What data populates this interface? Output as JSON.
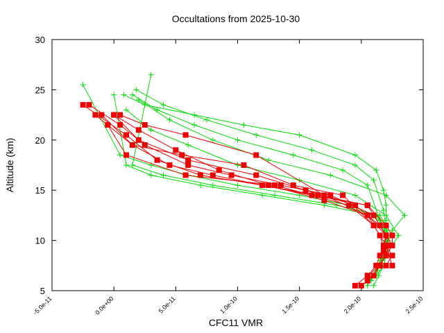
{
  "chart_data": {
    "type": "line",
    "title": "Occultations from 2025-10-30",
    "xlabel": "CFC11 VMR",
    "ylabel": "Altitude (km)",
    "xlim": [
      -5e-11,
      2.5e-10
    ],
    "ylim": [
      5,
      30
    ],
    "xticks": [
      -5e-11,
      0,
      5e-11,
      1e-10,
      1.5e-10,
      2e-10,
      2.5e-10
    ],
    "xtick_labels": [
      "-5.0e-11",
      "0.0e+00",
      "5.0e-11",
      "1.0e-10",
      "1.5e-10",
      "2.0e-10",
      "2.5e-10"
    ],
    "yticks": [
      5,
      10,
      15,
      20,
      25,
      30
    ],
    "ytick_labels": [
      "5",
      "10",
      "15",
      "20",
      "25",
      "30"
    ],
    "grid": false,
    "legend": "none",
    "series": [
      {
        "color": "#00dd00",
        "marker": "plus",
        "profiles": [
          {
            "x": [
              2.05e-10,
              2.1e-10,
              2.15e-10,
              2.18e-10,
              2.2e-10,
              2.2e-10,
              2.18e-10,
              2.12e-10,
              1.9e-10,
              1.5e-10,
              1e-10,
              6e-11,
              3e-11,
              5e-12,
              -2.5e-11
            ],
            "y": [
              5.5,
              6.5,
              7.5,
              8.5,
              9.5,
              10.5,
              11.5,
              12.5,
              13.5,
              14.5,
              15.5,
              16.5,
              17.5,
              18.5,
              25.5
            ]
          },
          {
            "x": [
              2.1e-10,
              2.15e-10,
              2.18e-10,
              2.2e-10,
              2.22e-10,
              2.18e-10,
              2.1e-10,
              1.7e-10,
              1.2e-10,
              7e-11,
              3e-11,
              1e-11,
              0.0
            ],
            "y": [
              6.5,
              7.5,
              8.5,
              9.5,
              10.5,
              11.5,
              12.5,
              13.5,
              14.5,
              15.5,
              16.5,
              17.5,
              24.5
            ]
          },
          {
            "x": [
              2.15e-10,
              2.18e-10,
              2.2e-10,
              2.22e-10,
              2.2e-10,
              2.15e-10,
              1.8e-10,
              1.3e-10,
              8e-11,
              4e-11,
              1.5e-11,
              3e-11
            ],
            "y": [
              7.5,
              8.5,
              9.5,
              10.5,
              11.5,
              12.5,
              13.5,
              14.5,
              15.5,
              16.5,
              17.5,
              26.5
            ]
          },
          {
            "x": [
              2e-10,
              2.12e-10,
              2.18e-10,
              2.2e-10,
              2.25e-10,
              2.3e-10,
              2.2e-10,
              1.95e-10,
              1.5e-10,
              1e-10,
              6e-11,
              3e-11,
              1e-11
            ],
            "y": [
              5.5,
              6.5,
              7.5,
              8.5,
              9.5,
              10.5,
              12.5,
              14.5,
              16.0,
              17.5,
              19.5,
              21.0,
              23.0
            ]
          },
          {
            "x": [
              2.08e-10,
              2.13e-10,
              2.17e-10,
              2.2e-10,
              2.22e-10,
              2.25e-10,
              2.35e-10,
              2.2e-10,
              1.75e-10,
              1.25e-10,
              8e-11,
              4.5e-11,
              2e-11
            ],
            "y": [
              6.0,
              7.0,
              8.0,
              9.0,
              10.0,
              11.0,
              12.5,
              14.5,
              16.5,
              18.0,
              20.0,
              22.0,
              24.0
            ]
          },
          {
            "x": [
              2.1e-10,
              2.14e-10,
              2.18e-10,
              2.2e-10,
              2.22e-10,
              2.2e-10,
              2.15e-10,
              2.05e-10,
              1.85e-10,
              1.45e-10,
              1e-10,
              6.5e-11,
              3.5e-11,
              1.5e-11
            ],
            "y": [
              5.5,
              6.5,
              7.5,
              8.5,
              9.5,
              10.5,
              12.0,
              15.5,
              17.0,
              18.5,
              20.0,
              21.5,
              23.0,
              24.5
            ]
          },
          {
            "x": [
              2.12e-10,
              2.15e-10,
              2.18e-10,
              2.2e-10,
              2.2e-10,
              2.18e-10,
              2.1e-10,
              1.95e-10,
              1.6e-10,
              1.15e-10,
              7.5e-11,
              4e-11,
              1.8e-11
            ],
            "y": [
              7.0,
              8.0,
              9.0,
              10.0,
              11.0,
              13.0,
              16.0,
              17.5,
              19.0,
              20.5,
              22.0,
              23.5,
              25.0
            ]
          },
          {
            "x": [
              2.2e-10,
              2.2e-10,
              2.18e-10,
              2.12e-10,
              1.95e-10,
              1.5e-10,
              1.05e-10,
              6.5e-11,
              2.5e-11,
              8e-12
            ],
            "y": [
              12.0,
              13.5,
              15.0,
              17.0,
              18.5,
              20.5,
              21.5,
              22.5,
              23.5,
              24.5
            ]
          }
        ]
      },
      {
        "color": "#ee0000",
        "marker": "square",
        "profiles": [
          {
            "x": [
              1.95e-10,
              2.05e-10,
              2.12e-10,
              2.15e-10,
              2.18e-10,
              2.2e-10,
              2.15e-10,
              2.05e-10,
              1.6e-10,
              1.2e-10,
              7e-11,
              3.5e-11,
              1e-11,
              -2.5e-11
            ],
            "y": [
              5.5,
              6.5,
              7.5,
              8.5,
              9.5,
              10.5,
              11.5,
              13.5,
              14.5,
              15.5,
              16.5,
              18.0,
              20.5,
              23.5
            ]
          },
          {
            "x": [
              2e-10,
              2.1e-10,
              2.15e-10,
              2.2e-10,
              2.22e-10,
              2.2e-10,
              2.1e-10,
              1.75e-10,
              1.35e-10,
              9.5e-11,
              6e-11,
              2.5e-11,
              5e-12,
              -2e-11
            ],
            "y": [
              5.5,
              6.5,
              7.5,
              8.5,
              9.5,
              10.5,
              12.5,
              14.5,
              15.5,
              16.5,
              17.5,
              19.5,
              21.5,
              23.5
            ]
          },
          {
            "x": [
              2.05e-10,
              2.15e-10,
              2.2e-10,
              2.25e-10,
              2.25e-10,
              2.2e-10,
              2.05e-10,
              1.65e-10,
              1.2e-10,
              8e-11,
              4.5e-11,
              1.5e-11,
              -1e-11
            ],
            "y": [
              6.5,
              7.5,
              8.5,
              9.5,
              10.5,
              11.5,
              13.5,
              14.5,
              15.5,
              16.5,
              17.5,
              19.5,
              22.5
            ]
          },
          {
            "x": [
              2.15e-10,
              2.2e-10,
              2.25e-10,
              2.2e-10,
              2.15e-10,
              1.95e-10,
              1.55e-10,
              1.15e-10,
              6e-11,
              2e-11,
              0.0
            ],
            "y": [
              7.5,
              8.5,
              9.5,
              10.5,
              11.5,
              13.5,
              15.0,
              16.5,
              18.0,
              20.0,
              22.5
            ]
          },
          {
            "x": [
              2.2e-10,
              2.25e-10,
              2.2e-10,
              2.1e-10,
              1.85e-10,
              1.45e-10,
              1.05e-10,
              5.5e-11,
              1.5e-11,
              -1.5e-11
            ],
            "y": [
              7.5,
              8.5,
              9.5,
              11.5,
              14.5,
              15.5,
              17.5,
              18.5,
              19.5,
              22.5
            ]
          },
          {
            "x": [
              2.05e-10,
              2.15e-10,
              2.18e-10,
              2.2e-10,
              2.05e-10,
              1.7e-10,
              1.25e-10,
              8.5e-11,
              5e-11,
              2e-11,
              0.0
            ],
            "y": [
              6.0,
              7.5,
              9.0,
              10.5,
              12.5,
              14.0,
              15.5,
              17.0,
              19.0,
              21.0,
              22.5
            ]
          },
          {
            "x": [
              2.25e-10,
              2.2e-10,
              2.1e-10,
              1.9e-10,
              1.3e-10,
              5.8e-11,
              1e-11,
              -5e-12
            ],
            "y": [
              7.5,
              9.5,
              11.5,
              13.5,
              15.5,
              16.5,
              18.5,
              21.5
            ]
          },
          {
            "x": [
              2.2e-10,
              2.15e-10,
              2.05e-10,
              1.7e-10,
              1.15e-10,
              5.8e-11,
              2.5e-11,
              5e-12
            ],
            "y": [
              8.5,
              10.5,
              12.5,
              14.5,
              18.5,
              20.5,
              21.5,
              22.5
            ]
          }
        ]
      }
    ]
  }
}
